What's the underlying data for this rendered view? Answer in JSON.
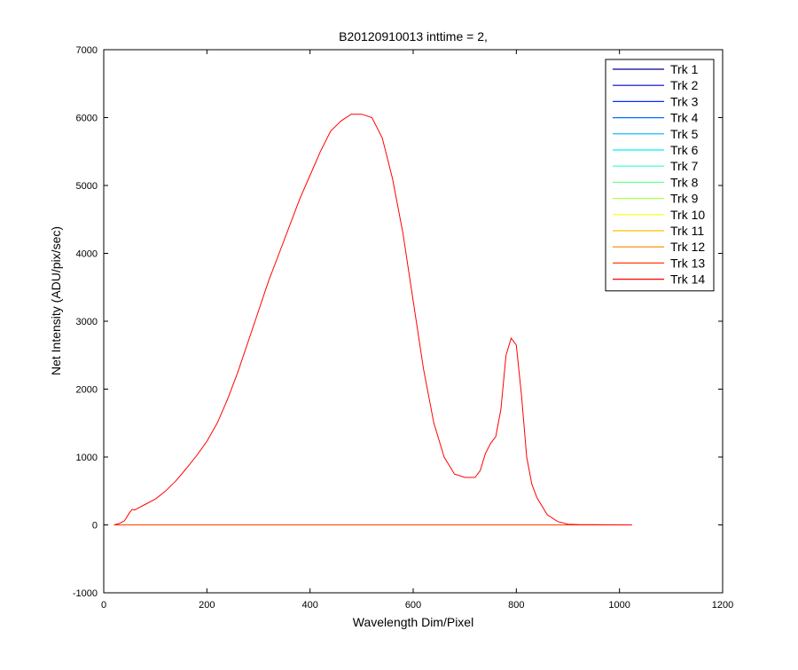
{
  "chart_data": {
    "type": "line",
    "title": "B20120910013 inttime = 2,",
    "xlabel": "Wavelength Dim/Pixel",
    "ylabel": "Net Intensity (ADU/pix/sec)",
    "xlim": [
      0,
      1200
    ],
    "ylim": [
      -1000,
      7000
    ],
    "xticks": [
      0,
      200,
      400,
      600,
      800,
      1000,
      1200
    ],
    "yticks": [
      -1000,
      0,
      1000,
      2000,
      3000,
      4000,
      5000,
      6000,
      7000
    ],
    "grid": false,
    "legend_position": "top-right",
    "series": [
      {
        "name": "Trk 1",
        "color": "#00008f",
        "x": [
          20,
          1024
        ],
        "y": [
          0,
          0
        ]
      },
      {
        "name": "Trk 2",
        "color": "#0000d8",
        "x": [
          20,
          1024
        ],
        "y": [
          0,
          0
        ]
      },
      {
        "name": "Trk 3",
        "color": "#0030ff",
        "x": [
          20,
          1024
        ],
        "y": [
          0,
          0
        ]
      },
      {
        "name": "Trk 4",
        "color": "#0070ff",
        "x": [
          20,
          1024
        ],
        "y": [
          0,
          0
        ]
      },
      {
        "name": "Trk 5",
        "color": "#00b0ff",
        "x": [
          20,
          1024
        ],
        "y": [
          0,
          0
        ]
      },
      {
        "name": "Trk 6",
        "color": "#00f0ff",
        "x": [
          20,
          1024
        ],
        "y": [
          0,
          0
        ]
      },
      {
        "name": "Trk 7",
        "color": "#30ffcf",
        "x": [
          20,
          1024
        ],
        "y": [
          0,
          0
        ]
      },
      {
        "name": "Trk 8",
        "color": "#70ff8f",
        "x": [
          20,
          1024
        ],
        "y": [
          0,
          0
        ]
      },
      {
        "name": "Trk 9",
        "color": "#b0ff4f",
        "x": [
          20,
          1024
        ],
        "y": [
          0,
          0
        ]
      },
      {
        "name": "Trk 10",
        "color": "#f0ff0f",
        "x": [
          20,
          1024
        ],
        "y": [
          0,
          0
        ]
      },
      {
        "name": "Trk 11",
        "color": "#ffc000",
        "x": [
          20,
          1024
        ],
        "y": [
          0,
          0
        ]
      },
      {
        "name": "Trk 12",
        "color": "#ff8000",
        "x": [
          20,
          1024
        ],
        "y": [
          0,
          0
        ]
      },
      {
        "name": "Trk 13",
        "color": "#ff4000",
        "x": [
          20,
          1024
        ],
        "y": [
          0,
          0
        ]
      },
      {
        "name": "Trk 14",
        "color": "#ff0000",
        "x": [
          20,
          30,
          40,
          50,
          55,
          60,
          70,
          80,
          100,
          120,
          140,
          160,
          180,
          200,
          220,
          240,
          260,
          280,
          300,
          320,
          340,
          360,
          380,
          400,
          420,
          440,
          460,
          480,
          500,
          520,
          540,
          560,
          580,
          600,
          620,
          640,
          660,
          680,
          700,
          720,
          730,
          740,
          750,
          760,
          770,
          780,
          790,
          800,
          810,
          820,
          830,
          840,
          860,
          880,
          900,
          920,
          950,
          980,
          1024
        ],
        "y": [
          0,
          20,
          60,
          180,
          230,
          220,
          260,
          300,
          380,
          500,
          650,
          830,
          1020,
          1230,
          1500,
          1850,
          2250,
          2700,
          3150,
          3600,
          4000,
          4400,
          4800,
          5150,
          5500,
          5800,
          5950,
          6050,
          6050,
          6000,
          5700,
          5100,
          4300,
          3300,
          2300,
          1500,
          1000,
          750,
          700,
          700,
          800,
          1050,
          1200,
          1300,
          1700,
          2500,
          2750,
          2650,
          1900,
          1000,
          600,
          400,
          150,
          50,
          10,
          5,
          3,
          1,
          0
        ]
      }
    ]
  }
}
